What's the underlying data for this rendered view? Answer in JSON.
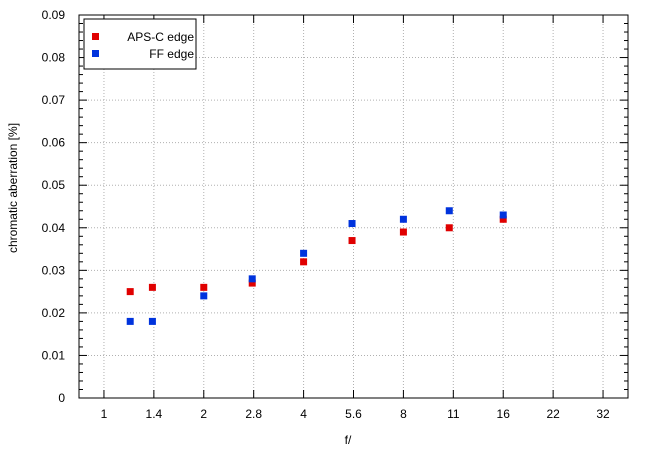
{
  "chart_data": {
    "type": "scatter",
    "title": "",
    "xlabel": "f/",
    "ylabel": "chromatic  aberration [%]",
    "x_scale": "log2",
    "x_ticks": [
      "1",
      "1.4",
      "2",
      "2.8",
      "4",
      "5.6",
      "8",
      "11",
      "16",
      "22",
      "32"
    ],
    "ylim": [
      0,
      0.09
    ],
    "y_ticks": [
      "0",
      "0.01",
      "0.02",
      "0.03",
      "0.04",
      "0.05",
      "0.06",
      "0.07",
      "0.08",
      "0.09"
    ],
    "grid": true,
    "legend_position": "top-left",
    "series": [
      {
        "name": "APS-C edge",
        "color": "#e00000",
        "marker": "square",
        "points": [
          {
            "x": 1.2,
            "y": 0.025
          },
          {
            "x": 1.4,
            "y": 0.026
          },
          {
            "x": 2,
            "y": 0.026
          },
          {
            "x": 2.8,
            "y": 0.027
          },
          {
            "x": 4,
            "y": 0.032
          },
          {
            "x": 5.6,
            "y": 0.037
          },
          {
            "x": 8,
            "y": 0.039
          },
          {
            "x": 11,
            "y": 0.04
          },
          {
            "x": 16,
            "y": 0.042
          }
        ]
      },
      {
        "name": "FF edge",
        "color": "#0033dd",
        "marker": "square",
        "points": [
          {
            "x": 1.2,
            "y": 0.018
          },
          {
            "x": 1.4,
            "y": 0.018
          },
          {
            "x": 2,
            "y": 0.024
          },
          {
            "x": 2.8,
            "y": 0.028
          },
          {
            "x": 4,
            "y": 0.034
          },
          {
            "x": 5.6,
            "y": 0.041
          },
          {
            "x": 8,
            "y": 0.042
          },
          {
            "x": 11,
            "y": 0.044
          },
          {
            "x": 16,
            "y": 0.043
          }
        ]
      }
    ]
  }
}
